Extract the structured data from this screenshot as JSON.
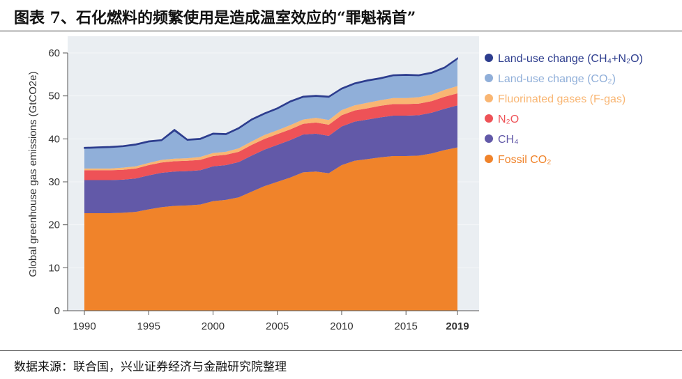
{
  "figure_title": "图表 7、石化燃料的频繁使用是造成温室效应的“罪魁祸首”",
  "source": "数据来源：联合国，兴业证券经济与金融研究院整理",
  "chart_data": {
    "type": "area",
    "stacked": true,
    "ylabel": "Global greenhouse gas emissions (GtCO2e)",
    "xlabel": "",
    "ylim": [
      0,
      60
    ],
    "yticks": [
      "0",
      "10",
      "20",
      "30",
      "40",
      "50",
      "60"
    ],
    "xticks": [
      "1990",
      "1995",
      "2000",
      "2005",
      "2010",
      "2015",
      "2019"
    ],
    "x": [
      1990,
      1991,
      1992,
      1993,
      1994,
      1995,
      1996,
      1997,
      1998,
      1999,
      2000,
      2001,
      2002,
      2003,
      2004,
      2005,
      2006,
      2007,
      2008,
      2009,
      2010,
      2011,
      2012,
      2013,
      2014,
      2015,
      2016,
      2017,
      2018,
      2019
    ],
    "legend_position": "right",
    "series": [
      {
        "name": "Fossil CO₂",
        "color": "#f0832a",
        "values": [
          22.7,
          22.7,
          22.7,
          22.8,
          23.0,
          23.6,
          24.1,
          24.4,
          24.5,
          24.7,
          25.5,
          25.8,
          26.4,
          27.7,
          29.0,
          30.0,
          31.0,
          32.2,
          32.4,
          32.0,
          33.9,
          34.9,
          35.3,
          35.7,
          36.0,
          36.0,
          36.1,
          36.6,
          37.4,
          38.0
        ]
      },
      {
        "name": "CH₄",
        "color": "#6259a8",
        "values": [
          7.7,
          7.7,
          7.7,
          7.7,
          7.8,
          7.9,
          8.0,
          8.0,
          8.0,
          8.0,
          8.1,
          8.1,
          8.2,
          8.4,
          8.5,
          8.6,
          8.7,
          8.8,
          8.8,
          8.7,
          9.0,
          9.1,
          9.2,
          9.3,
          9.4,
          9.4,
          9.4,
          9.5,
          9.6,
          9.8
        ]
      },
      {
        "name": "N₂O",
        "color": "#ee5257",
        "values": [
          2.3,
          2.3,
          2.3,
          2.3,
          2.3,
          2.4,
          2.4,
          2.4,
          2.4,
          2.4,
          2.4,
          2.4,
          2.4,
          2.5,
          2.5,
          2.5,
          2.5,
          2.5,
          2.6,
          2.6,
          2.6,
          2.6,
          2.6,
          2.7,
          2.7,
          2.7,
          2.7,
          2.7,
          2.8,
          2.8
        ]
      },
      {
        "name": "Fluorinated gases (F-gas)",
        "color": "#f9b673",
        "values": [
          0.4,
          0.4,
          0.4,
          0.5,
          0.5,
          0.5,
          0.6,
          0.6,
          0.6,
          0.7,
          0.7,
          0.7,
          0.8,
          0.8,
          0.9,
          0.9,
          1.0,
          1.0,
          1.1,
          1.1,
          1.2,
          1.2,
          1.3,
          1.3,
          1.4,
          1.4,
          1.5,
          1.5,
          1.6,
          1.7
        ]
      },
      {
        "name": "Land-use change (CO₂)",
        "color": "#90afd9",
        "values": [
          4.7,
          4.8,
          4.9,
          4.9,
          5.0,
          4.9,
          4.5,
          6.5,
          4.2,
          4.1,
          4.4,
          4.0,
          4.6,
          5.0,
          4.9,
          5.0,
          5.4,
          5.2,
          5.0,
          5.3,
          4.9,
          5.0,
          5.1,
          5.0,
          5.2,
          5.3,
          5.0,
          5.0,
          5.1,
          6.3
        ]
      },
      {
        "name": "Land-use change (CH₄+N₂O)",
        "color": "#2d3d8e",
        "values": [
          0.2,
          0.2,
          0.2,
          0.2,
          0.2,
          0.2,
          0.2,
          0.3,
          0.2,
          0.2,
          0.2,
          0.2,
          0.2,
          0.2,
          0.2,
          0.2,
          0.2,
          0.2,
          0.2,
          0.2,
          0.2,
          0.2,
          0.2,
          0.2,
          0.2,
          0.2,
          0.2,
          0.2,
          0.2,
          0.2
        ]
      }
    ]
  }
}
